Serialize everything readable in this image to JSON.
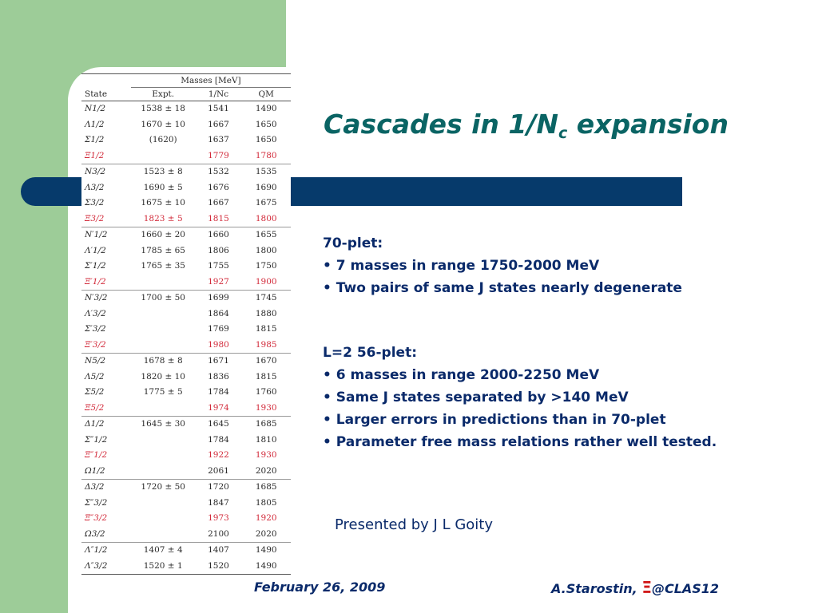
{
  "slide": {
    "title_main": "Cascades in 1/N",
    "title_sub": "c",
    "title_tail": " expansion",
    "presenter": "Presented by J L Goity",
    "footer_date": "February 26, 2009",
    "footer_author_before": "A.Starostin, ",
    "footer_symbol": "Ξ",
    "footer_author_after": "@CLAS12"
  },
  "sections": [
    {
      "heading": "70-plet:",
      "bullets": [
        "• 7 masses in range 1750-2000 MeV",
        "• Two pairs of same J states nearly degenerate"
      ]
    },
    {
      "heading": "L=2 56-plet:",
      "bullets": [
        "• 6 masses in range 2000-2250 MeV",
        "• Same J states separated by >140 MeV",
        "• Larger errors in predictions than in 70-plet",
        "• Parameter free mass relations rather well tested."
      ]
    }
  ],
  "table": {
    "caption": "Masses [MeV]",
    "headers": [
      "State",
      "Expt.",
      "1/Nc",
      "QM"
    ],
    "rows": [
      {
        "state": "N1/2",
        "expt": "1538 ± 18",
        "nc": "1541",
        "qm": "1490",
        "red": false,
        "sep": false
      },
      {
        "state": "Λ1/2",
        "expt": "1670 ± 10",
        "nc": "1667",
        "qm": "1650",
        "red": false,
        "sep": false
      },
      {
        "state": "Σ1/2",
        "expt": "(1620)",
        "nc": "1637",
        "qm": "1650",
        "red": false,
        "sep": false
      },
      {
        "state": "Ξ1/2",
        "expt": "",
        "nc": "1779",
        "qm": "1780",
        "red": true,
        "sep": false
      },
      {
        "state": "N3/2",
        "expt": "1523 ± 8",
        "nc": "1532",
        "qm": "1535",
        "red": false,
        "sep": true
      },
      {
        "state": "Λ3/2",
        "expt": "1690 ± 5",
        "nc": "1676",
        "qm": "1690",
        "red": false,
        "sep": false
      },
      {
        "state": "Σ3/2",
        "expt": "1675 ± 10",
        "nc": "1667",
        "qm": "1675",
        "red": false,
        "sep": false
      },
      {
        "state": "Ξ3/2",
        "expt": "1823 ± 5",
        "nc": "1815",
        "qm": "1800",
        "red": true,
        "sep": false
      },
      {
        "state": "N′1/2",
        "expt": "1660 ± 20",
        "nc": "1660",
        "qm": "1655",
        "red": false,
        "sep": true
      },
      {
        "state": "Λ′1/2",
        "expt": "1785 ± 65",
        "nc": "1806",
        "qm": "1800",
        "red": false,
        "sep": false
      },
      {
        "state": "Σ′1/2",
        "expt": "1765 ± 35",
        "nc": "1755",
        "qm": "1750",
        "red": false,
        "sep": false
      },
      {
        "state": "Ξ′1/2",
        "expt": "",
        "nc": "1927",
        "qm": "1900",
        "red": true,
        "sep": false
      },
      {
        "state": "N′3/2",
        "expt": "1700 ± 50",
        "nc": "1699",
        "qm": "1745",
        "red": false,
        "sep": true
      },
      {
        "state": "Λ′3/2",
        "expt": "",
        "nc": "1864",
        "qm": "1880",
        "red": false,
        "sep": false
      },
      {
        "state": "Σ′3/2",
        "expt": "",
        "nc": "1769",
        "qm": "1815",
        "red": false,
        "sep": false
      },
      {
        "state": "Ξ′3/2",
        "expt": "",
        "nc": "1980",
        "qm": "1985",
        "red": true,
        "sep": false
      },
      {
        "state": "N5/2",
        "expt": "1678 ± 8",
        "nc": "1671",
        "qm": "1670",
        "red": false,
        "sep": true
      },
      {
        "state": "Λ5/2",
        "expt": "1820 ± 10",
        "nc": "1836",
        "qm": "1815",
        "red": false,
        "sep": false
      },
      {
        "state": "Σ5/2",
        "expt": "1775 ± 5",
        "nc": "1784",
        "qm": "1760",
        "red": false,
        "sep": false
      },
      {
        "state": "Ξ5/2",
        "expt": "",
        "nc": "1974",
        "qm": "1930",
        "red": true,
        "sep": false
      },
      {
        "state": "Δ1/2",
        "expt": "1645 ± 30",
        "nc": "1645",
        "qm": "1685",
        "red": false,
        "sep": true
      },
      {
        "state": "Σ″1/2",
        "expt": "",
        "nc": "1784",
        "qm": "1810",
        "red": false,
        "sep": false
      },
      {
        "state": "Ξ″1/2",
        "expt": "",
        "nc": "1922",
        "qm": "1930",
        "red": true,
        "sep": false
      },
      {
        "state": "Ω1/2",
        "expt": "",
        "nc": "2061",
        "qm": "2020",
        "red": false,
        "sep": false
      },
      {
        "state": "Δ3/2",
        "expt": "1720 ± 50",
        "nc": "1720",
        "qm": "1685",
        "red": false,
        "sep": true
      },
      {
        "state": "Σ″3/2",
        "expt": "",
        "nc": "1847",
        "qm": "1805",
        "red": false,
        "sep": false
      },
      {
        "state": "Ξ″3/2",
        "expt": "",
        "nc": "1973",
        "qm": "1920",
        "red": true,
        "sep": false
      },
      {
        "state": "Ω3/2",
        "expt": "",
        "nc": "2100",
        "qm": "2020",
        "red": false,
        "sep": false
      },
      {
        "state": "Λ″1/2",
        "expt": "1407 ± 4",
        "nc": "1407",
        "qm": "1490",
        "red": false,
        "sep": true
      },
      {
        "state": "Λ″3/2",
        "expt": "1520 ± 1",
        "nc": "1520",
        "qm": "1490",
        "red": false,
        "sep": false
      }
    ]
  },
  "colors": {
    "green_band": "#9dcc98",
    "blue_bar": "#063a6b",
    "title": "#0a6464",
    "text": "#0a2a6a",
    "red": "#d22a3a"
  }
}
